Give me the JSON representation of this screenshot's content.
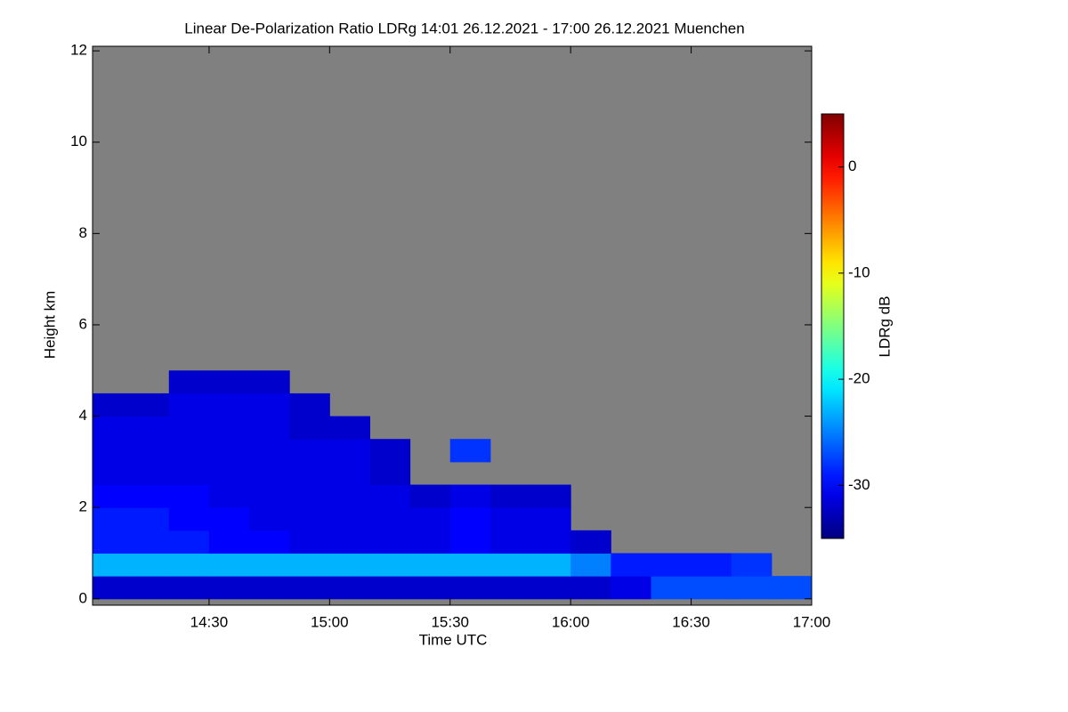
{
  "chart_data": {
    "type": "heatmap",
    "title": "Linear De-Polarization Ratio LDRg   14:01 26.12.2021 - 17:00 26.12.2021 Muenchen",
    "x_label": "Time UTC",
    "y_label": "Height km",
    "colorbar_label": "LDRg dB",
    "colormap": "jet",
    "nodata_color": "#808080",
    "x": [
      840,
      850,
      860,
      870,
      880,
      890,
      900,
      910,
      920,
      930,
      940,
      950,
      960,
      970,
      980,
      990,
      1000,
      1010,
      1020
    ],
    "y": [
      0,
      0.5,
      1,
      1.5,
      2,
      2.5,
      3,
      3.5,
      4,
      4.5,
      5
    ],
    "values": [
      [
        -32,
        -32,
        -32,
        -32,
        -32,
        -32,
        -32,
        -32,
        -32,
        -32,
        -32,
        -32,
        -32,
        -31,
        -27,
        -27,
        -27,
        -27
      ],
      [
        -23,
        -23,
        -23,
        -23,
        -23,
        -23,
        -23,
        -23,
        -23,
        -23,
        -23,
        -23,
        -25,
        -29,
        -29,
        -29,
        -28,
        null
      ],
      [
        -29,
        -29,
        -29,
        -30,
        -30,
        -31,
        -31,
        -31,
        -31,
        -30,
        -31,
        -31,
        -32,
        null,
        null,
        null,
        null,
        null
      ],
      [
        -29,
        -29,
        -30,
        -30,
        -31,
        -31,
        -31,
        -31,
        -31,
        -30,
        -31,
        -31,
        null,
        null,
        null,
        null,
        null,
        null
      ],
      [
        -30,
        -30,
        -30,
        -31,
        -31,
        -31,
        -31,
        -31,
        -32,
        -31,
        -32,
        -32,
        null,
        null,
        null,
        null,
        null,
        null
      ],
      [
        -31,
        -31,
        -31,
        -31,
        -31,
        -31,
        -31,
        -32,
        null,
        null,
        null,
        null,
        null,
        null,
        null,
        null,
        null,
        null
      ],
      [
        -31,
        -31,
        -31,
        -31,
        -31,
        -31,
        -31,
        -32,
        null,
        -28,
        null,
        null,
        null,
        null,
        null,
        null,
        null,
        null
      ],
      [
        -31,
        -31,
        -31,
        -31,
        -31,
        -32,
        -32,
        null,
        null,
        null,
        null,
        null,
        null,
        null,
        null,
        null,
        null,
        null
      ],
      [
        -32,
        -32,
        -31,
        -31,
        -31,
        -32,
        null,
        null,
        null,
        null,
        null,
        null,
        null,
        null,
        null,
        null,
        null,
        null
      ],
      [
        null,
        null,
        -32,
        -32,
        -32,
        null,
        null,
        null,
        null,
        null,
        null,
        null,
        null,
        null,
        null,
        null,
        null,
        null
      ]
    ],
    "xlim": [
      841,
      1020
    ],
    "xticks": [
      {
        "value": 870,
        "label": "14:30"
      },
      {
        "value": 900,
        "label": "15:00"
      },
      {
        "value": 930,
        "label": "15:30"
      },
      {
        "value": 960,
        "label": "16:00"
      },
      {
        "value": 990,
        "label": "16:30"
      },
      {
        "value": 1020,
        "label": "17:00"
      }
    ],
    "ylim": [
      -0.14,
      12.1
    ],
    "yticks": [
      0,
      2,
      4,
      6,
      8,
      10,
      12
    ],
    "clim": [
      -35,
      5
    ],
    "cticks": [
      0,
      -10,
      -20,
      -30
    ]
  }
}
